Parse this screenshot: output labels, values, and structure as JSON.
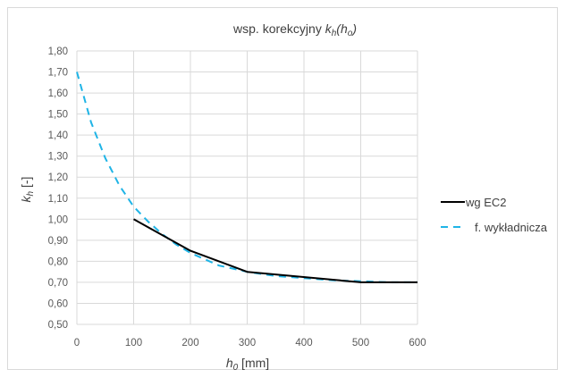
{
  "chart_data": {
    "type": "line",
    "title": {
      "prefix": "wsp. korekcyjny ",
      "k": "k",
      "k_sub": "h",
      "open": "(",
      "h": "h",
      "h_sub": "o",
      "close": ")"
    },
    "xlabel": {
      "h": "h",
      "h_sub": "0",
      "rest": " [mm]"
    },
    "ylabel": {
      "k": "k",
      "k_sub": "h",
      "rest": " [-]"
    },
    "xlim": [
      0,
      600
    ],
    "ylim": [
      0.5,
      1.8
    ],
    "x_ticks": [
      "0",
      "100",
      "200",
      "300",
      "400",
      "500",
      "600"
    ],
    "y_ticks": [
      "0,50",
      "0,60",
      "0,70",
      "0,80",
      "0,90",
      "1,00",
      "1,10",
      "1,20",
      "1,30",
      "1,40",
      "1,50",
      "1,60",
      "1,70",
      "1,80"
    ],
    "grid": true,
    "legend_position": "right",
    "series": [
      {
        "name": "wg EC2",
        "color": "#000000",
        "style": "solid",
        "x": [
          100,
          200,
          300,
          500,
          600
        ],
        "y": [
          1.0,
          0.85,
          0.75,
          0.7,
          0.7
        ]
      },
      {
        "name": "f. wykładnicza",
        "color": "#1fb4e6",
        "style": "dashed",
        "x": [
          0,
          25,
          50,
          75,
          100,
          125,
          150,
          175,
          200,
          250,
          300,
          350,
          400,
          450,
          500,
          550,
          600
        ],
        "y": [
          1.7,
          1.46,
          1.29,
          1.16,
          1.06,
          0.99,
          0.93,
          0.88,
          0.84,
          0.78,
          0.75,
          0.73,
          0.72,
          0.71,
          0.705,
          0.7,
          0.7
        ]
      }
    ]
  }
}
